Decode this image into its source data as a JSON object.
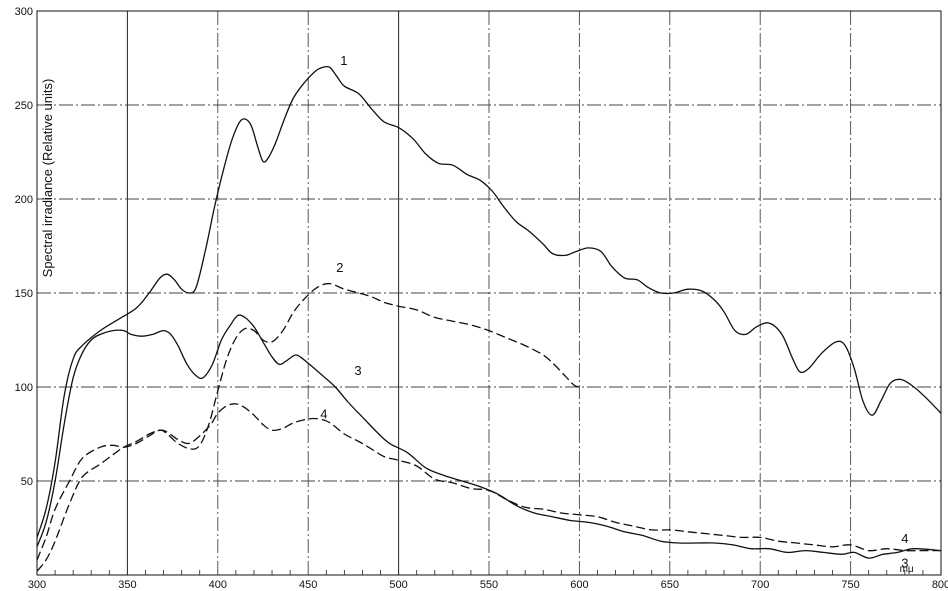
{
  "chart_data": {
    "type": "line",
    "ylabel": "Spectral irradiance (Relative units)",
    "xunit": "mμ",
    "xlim": [
      300,
      800
    ],
    "ylim": [
      0,
      300
    ],
    "xticks": [
      300,
      350,
      400,
      450,
      500,
      550,
      600,
      650,
      700,
      750,
      800
    ],
    "yticks": [
      50,
      100,
      150,
      200,
      250,
      300
    ],
    "grid": true,
    "series": [
      {
        "name": "1",
        "dash": "solid",
        "label_at": [
          462,
          268
        ],
        "points": [
          [
            300,
            20
          ],
          [
            305,
            35
          ],
          [
            310,
            60
          ],
          [
            315,
            95
          ],
          [
            320,
            115
          ],
          [
            325,
            122
          ],
          [
            335,
            130
          ],
          [
            345,
            136
          ],
          [
            355,
            142
          ],
          [
            362,
            150
          ],
          [
            368,
            158
          ],
          [
            372,
            160
          ],
          [
            376,
            157
          ],
          [
            380,
            152
          ],
          [
            384,
            150
          ],
          [
            388,
            153
          ],
          [
            393,
            172
          ],
          [
            398,
            195
          ],
          [
            403,
            215
          ],
          [
            408,
            232
          ],
          [
            413,
            242
          ],
          [
            418,
            240
          ],
          [
            422,
            228
          ],
          [
            425,
            220
          ],
          [
            428,
            222
          ],
          [
            432,
            230
          ],
          [
            437,
            243
          ],
          [
            442,
            254
          ],
          [
            448,
            262
          ],
          [
            454,
            268
          ],
          [
            458,
            270
          ],
          [
            462,
            270
          ],
          [
            466,
            265
          ],
          [
            470,
            260
          ],
          [
            478,
            256
          ],
          [
            485,
            248
          ],
          [
            492,
            241
          ],
          [
            500,
            238
          ],
          [
            508,
            232
          ],
          [
            515,
            224
          ],
          [
            522,
            219
          ],
          [
            530,
            218
          ],
          [
            538,
            213
          ],
          [
            545,
            210
          ],
          [
            552,
            204
          ],
          [
            558,
            196
          ],
          [
            565,
            188
          ],
          [
            572,
            183
          ],
          [
            580,
            176
          ],
          [
            585,
            171
          ],
          [
            592,
            170
          ],
          [
            598,
            172
          ],
          [
            605,
            174
          ],
          [
            612,
            172
          ],
          [
            618,
            164
          ],
          [
            625,
            158
          ],
          [
            632,
            157
          ],
          [
            638,
            153
          ],
          [
            645,
            150
          ],
          [
            652,
            150
          ],
          [
            660,
            152
          ],
          [
            668,
            151
          ],
          [
            675,
            146
          ],
          [
            680,
            140
          ],
          [
            686,
            130
          ],
          [
            692,
            128
          ],
          [
            698,
            132
          ],
          [
            705,
            134
          ],
          [
            712,
            128
          ],
          [
            718,
            115
          ],
          [
            722,
            108
          ],
          [
            727,
            110
          ],
          [
            734,
            118
          ],
          [
            742,
            124
          ],
          [
            747,
            122
          ],
          [
            752,
            110
          ],
          [
            757,
            92
          ],
          [
            762,
            85
          ],
          [
            767,
            93
          ],
          [
            772,
            102
          ],
          [
            778,
            104
          ],
          [
            785,
            100
          ],
          [
            792,
            94
          ],
          [
            800,
            86
          ]
        ]
      },
      {
        "name": "2",
        "dash": "dashed",
        "label_at": [
          462,
          157
        ],
        "points": [
          [
            300,
            8
          ],
          [
            305,
            20
          ],
          [
            310,
            35
          ],
          [
            318,
            50
          ],
          [
            325,
            62
          ],
          [
            335,
            68
          ],
          [
            342,
            69
          ],
          [
            348,
            68
          ],
          [
            355,
            70
          ],
          [
            362,
            74
          ],
          [
            368,
            77
          ],
          [
            372,
            75
          ],
          [
            378,
            70
          ],
          [
            385,
            67
          ],
          [
            390,
            69
          ],
          [
            395,
            80
          ],
          [
            400,
            98
          ],
          [
            405,
            115
          ],
          [
            410,
            126
          ],
          [
            415,
            131
          ],
          [
            420,
            130
          ],
          [
            425,
            125
          ],
          [
            430,
            124
          ],
          [
            436,
            130
          ],
          [
            442,
            140
          ],
          [
            448,
            147
          ],
          [
            455,
            153
          ],
          [
            462,
            155
          ],
          [
            470,
            152
          ],
          [
            478,
            150
          ],
          [
            485,
            148
          ],
          [
            492,
            145
          ],
          [
            500,
            143
          ],
          [
            510,
            141
          ],
          [
            520,
            137
          ],
          [
            530,
            135
          ],
          [
            540,
            133
          ],
          [
            550,
            130
          ],
          [
            560,
            126
          ],
          [
            570,
            122
          ],
          [
            580,
            117
          ],
          [
            586,
            112
          ],
          [
            592,
            106
          ],
          [
            597,
            101
          ],
          [
            600,
            100
          ]
        ]
      },
      {
        "name": "3",
        "dash": "solid",
        "label_at": [
          472,
          101
        ],
        "points": [
          [
            300,
            15
          ],
          [
            305,
            28
          ],
          [
            310,
            50
          ],
          [
            315,
            80
          ],
          [
            320,
            105
          ],
          [
            325,
            118
          ],
          [
            330,
            125
          ],
          [
            335,
            128
          ],
          [
            342,
            130
          ],
          [
            348,
            130
          ],
          [
            352,
            128
          ],
          [
            358,
            127
          ],
          [
            364,
            128
          ],
          [
            370,
            130
          ],
          [
            374,
            128
          ],
          [
            378,
            122
          ],
          [
            383,
            112
          ],
          [
            388,
            106
          ],
          [
            392,
            105
          ],
          [
            397,
            112
          ],
          [
            402,
            125
          ],
          [
            407,
            133
          ],
          [
            411,
            138
          ],
          [
            415,
            137
          ],
          [
            420,
            132
          ],
          [
            425,
            124
          ],
          [
            430,
            116
          ],
          [
            434,
            112
          ],
          [
            438,
            114
          ],
          [
            443,
            117
          ],
          [
            447,
            115
          ],
          [
            452,
            111
          ],
          [
            458,
            106
          ],
          [
            465,
            100
          ],
          [
            472,
            92
          ],
          [
            480,
            84
          ],
          [
            488,
            76
          ],
          [
            495,
            70
          ],
          [
            505,
            65
          ],
          [
            515,
            57
          ],
          [
            525,
            53
          ],
          [
            535,
            50
          ],
          [
            545,
            47
          ],
          [
            555,
            43
          ],
          [
            565,
            37
          ],
          [
            575,
            33
          ],
          [
            585,
            31
          ],
          [
            595,
            29
          ],
          [
            605,
            28
          ],
          [
            615,
            26
          ],
          [
            625,
            23
          ],
          [
            635,
            21
          ],
          [
            645,
            18
          ],
          [
            655,
            17
          ],
          [
            665,
            17
          ],
          [
            675,
            17
          ],
          [
            685,
            16
          ],
          [
            695,
            14
          ],
          [
            705,
            14
          ],
          [
            715,
            12
          ],
          [
            725,
            13
          ],
          [
            735,
            12
          ],
          [
            745,
            11
          ],
          [
            752,
            12
          ],
          [
            760,
            9
          ],
          [
            768,
            11
          ],
          [
            776,
            12
          ],
          [
            785,
            14
          ],
          [
            800,
            13
          ]
        ]
      },
      {
        "name": "4",
        "dash": "dashed",
        "label_at": [
          452,
          80
        ],
        "points": [
          [
            300,
            2
          ],
          [
            305,
            8
          ],
          [
            310,
            18
          ],
          [
            318,
            38
          ],
          [
            325,
            52
          ],
          [
            335,
            59
          ],
          [
            342,
            64
          ],
          [
            348,
            68
          ],
          [
            355,
            71
          ],
          [
            362,
            75
          ],
          [
            368,
            77
          ],
          [
            372,
            76
          ],
          [
            378,
            72
          ],
          [
            384,
            70
          ],
          [
            390,
            74
          ],
          [
            396,
            80
          ],
          [
            400,
            86
          ],
          [
            405,
            90
          ],
          [
            410,
            91
          ],
          [
            415,
            89
          ],
          [
            420,
            85
          ],
          [
            425,
            80
          ],
          [
            430,
            77
          ],
          [
            436,
            78
          ],
          [
            442,
            81
          ],
          [
            450,
            83
          ],
          [
            456,
            83
          ],
          [
            462,
            81
          ],
          [
            470,
            75
          ],
          [
            478,
            71
          ],
          [
            485,
            67
          ],
          [
            492,
            63
          ],
          [
            500,
            61
          ],
          [
            510,
            58
          ],
          [
            520,
            51
          ],
          [
            530,
            49
          ],
          [
            540,
            46
          ],
          [
            550,
            45
          ],
          [
            560,
            40
          ],
          [
            570,
            36
          ],
          [
            580,
            35
          ],
          [
            590,
            33
          ],
          [
            600,
            32
          ],
          [
            610,
            31
          ],
          [
            620,
            28
          ],
          [
            630,
            26
          ],
          [
            640,
            24
          ],
          [
            650,
            24
          ],
          [
            660,
            23
          ],
          [
            670,
            22
          ],
          [
            680,
            21
          ],
          [
            690,
            20
          ],
          [
            700,
            20
          ],
          [
            710,
            18
          ],
          [
            720,
            17
          ],
          [
            730,
            16
          ],
          [
            740,
            15
          ],
          [
            750,
            16
          ],
          [
            760,
            13
          ],
          [
            770,
            14
          ],
          [
            780,
            13
          ],
          [
            790,
            13
          ],
          [
            800,
            13
          ]
        ]
      }
    ]
  }
}
